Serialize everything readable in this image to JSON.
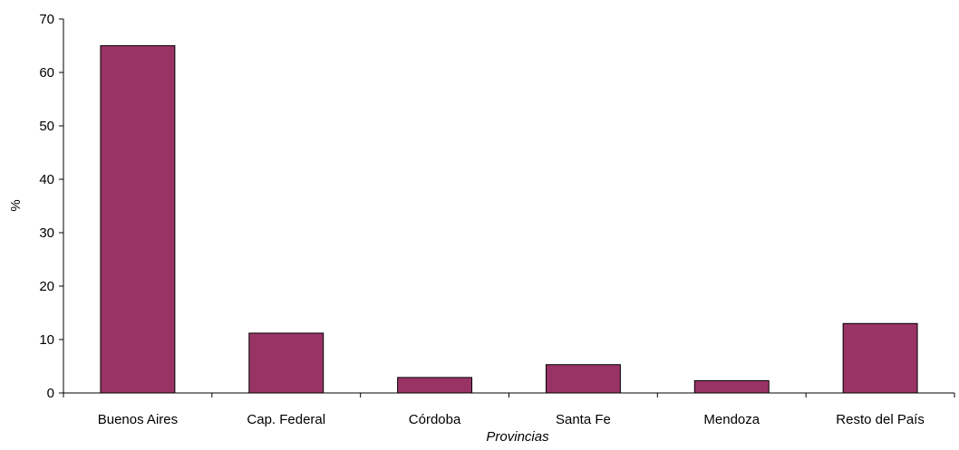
{
  "chart_data": {
    "type": "bar",
    "title": "",
    "xlabel": "Provincias",
    "ylabel": "%",
    "categories": [
      "Buenos Aires",
      "Cap. Federal",
      "Córdoba",
      "Santa Fe",
      "Mendoza",
      "Resto del País"
    ],
    "values": [
      65,
      11.2,
      2.9,
      5.3,
      2.3,
      13
    ],
    "ylim": [
      0,
      70
    ],
    "yticks": [
      0,
      10,
      20,
      30,
      40,
      50,
      60,
      70
    ],
    "grid": false,
    "legend": "none",
    "bar_color": "#993366",
    "bar_edge_color": "#000000"
  }
}
